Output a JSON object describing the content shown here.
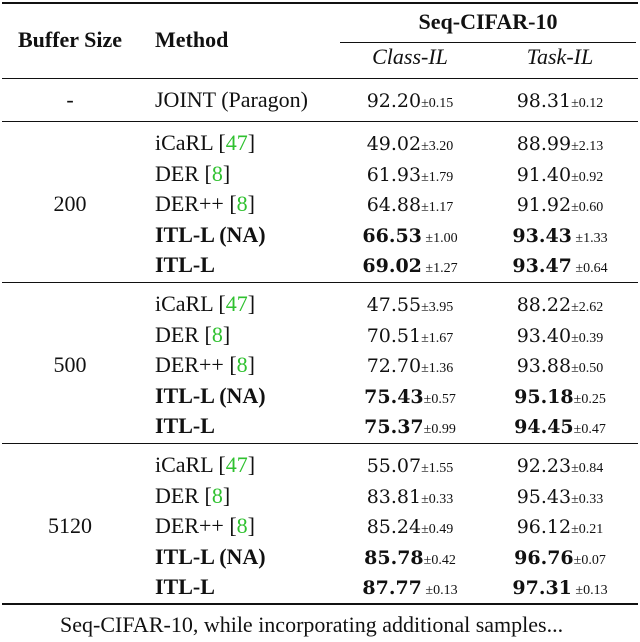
{
  "header": {
    "buffer_size": "Buffer Size",
    "method": "Method",
    "dataset": "Seq-CIFAR-10",
    "class_il": "Class-IL",
    "task_il": "Task-IL"
  },
  "joint": {
    "buffer": "-",
    "method": "JOINT (Paragon)",
    "class_mean": "92.20",
    "class_std": "±0.15",
    "task_mean": "98.31",
    "task_std": "±0.12"
  },
  "groups": [
    {
      "buffer": "200",
      "rows": [
        {
          "method": "iCaRL",
          "cite": "47",
          "bold": false,
          "class_mean": "49.02",
          "class_std": "±3.20",
          "task_mean": "88.99",
          "task_std": "±2.13"
        },
        {
          "method": "DER",
          "cite": "8",
          "bold": false,
          "class_mean": "61.93",
          "class_std": "±1.79",
          "task_mean": "91.40",
          "task_std": "±0.92"
        },
        {
          "method": "DER++",
          "cite": "8",
          "bold": false,
          "class_mean": "64.88",
          "class_std": "±1.17",
          "task_mean": "91.92",
          "task_std": "±0.60"
        },
        {
          "method": "ITL-L (NA)",
          "cite": "",
          "bold": true,
          "class_mean": "66.53",
          "class_std": " ±1.00",
          "task_mean": "93.43",
          "task_std": " ±1.33"
        },
        {
          "method": "ITL-L",
          "cite": "",
          "bold": true,
          "class_mean": "69.02",
          "class_std": " ±1.27",
          "task_mean": "93.47",
          "task_std": " ±0.64"
        }
      ]
    },
    {
      "buffer": "500",
      "rows": [
        {
          "method": "iCaRL",
          "cite": "47",
          "bold": false,
          "class_mean": "47.55",
          "class_std": "±3.95",
          "task_mean": "88.22",
          "task_std": "±2.62"
        },
        {
          "method": "DER",
          "cite": "8",
          "bold": false,
          "class_mean": "70.51",
          "class_std": "±1.67",
          "task_mean": "93.40",
          "task_std": "±0.39"
        },
        {
          "method": "DER++",
          "cite": "8",
          "bold": false,
          "class_mean": "72.70",
          "class_std": "±1.36",
          "task_mean": "93.88",
          "task_std": "±0.50"
        },
        {
          "method": "ITL-L (NA)",
          "cite": "",
          "bold": true,
          "class_mean": "75.43",
          "class_std": "±0.57",
          "task_mean": "95.18",
          "task_std": "±0.25"
        },
        {
          "method": "ITL-L",
          "cite": "",
          "bold": true,
          "class_mean": "75.37",
          "class_std": "±0.99",
          "task_mean": "94.45",
          "task_std": "±0.47"
        }
      ]
    },
    {
      "buffer": "5120",
      "rows": [
        {
          "method": "iCaRL",
          "cite": "47",
          "bold": false,
          "class_mean": "55.07",
          "class_std": "±1.55",
          "task_mean": "92.23",
          "task_std": "±0.84"
        },
        {
          "method": "DER",
          "cite": "8",
          "bold": false,
          "class_mean": "83.81",
          "class_std": "±0.33",
          "task_mean": "95.43",
          "task_std": "±0.33"
        },
        {
          "method": "DER++",
          "cite": "8",
          "bold": false,
          "class_mean": "85.24",
          "class_std": "±0.49",
          "task_mean": "96.12",
          "task_std": "±0.21"
        },
        {
          "method": "ITL-L (NA)",
          "cite": "",
          "bold": true,
          "class_mean": "85.78",
          "class_std": "±0.42",
          "task_mean": "96.76",
          "task_std": "±0.07"
        },
        {
          "method": "ITL-L",
          "cite": "",
          "bold": true,
          "class_mean": "87.77",
          "class_std": " ±0.13",
          "task_mean": "97.31",
          "task_std": " ±0.13"
        }
      ]
    }
  ],
  "caption": "Seq-CIFAR-10, while incorporating additional samples..."
}
